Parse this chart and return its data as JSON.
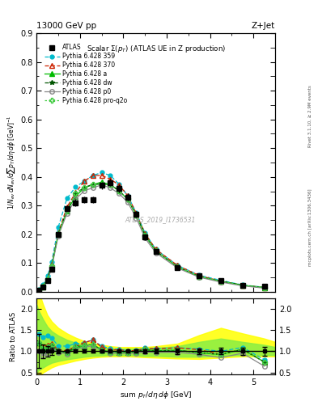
{
  "title_top": "13000 GeV pp",
  "title_right": "Z+Jet",
  "plot_title": "Scalar Σ(p_{T}) (ATLAS UE in Z production)",
  "ylabel_main": "1/N_{ev} dN_{ev}/dsum p_{T}/dη dφ  [GeV]^{-1}",
  "ylabel_ratio": "Ratio to ATLAS",
  "xlabel": "sum p_{T}/dη dφ [GeV]",
  "watermark": "ATLAS_2019_I1736531",
  "right_label_top": "Rivet 3.1.10, ≥ 2.9M events",
  "right_label_bot": "mcplots.cern.ch [arXiv:1306.3436]",
  "xlim": [
    0,
    5.5
  ],
  "ylim_main": [
    0,
    0.9
  ],
  "ylim_ratio": [
    0.45,
    2.25
  ],
  "x_atlas": [
    0.05,
    0.15,
    0.25,
    0.35,
    0.5,
    0.7,
    0.9,
    1.1,
    1.3,
    1.5,
    1.7,
    1.9,
    2.1,
    2.3,
    2.5,
    2.75,
    3.25,
    3.75,
    4.25,
    4.75,
    5.25
  ],
  "y_atlas": [
    0.005,
    0.018,
    0.04,
    0.08,
    0.2,
    0.29,
    0.31,
    0.32,
    0.32,
    0.37,
    0.38,
    0.36,
    0.33,
    0.27,
    0.19,
    0.14,
    0.085,
    0.055,
    0.04,
    0.022,
    0.02
  ],
  "yerr_atlas": [
    0.002,
    0.003,
    0.005,
    0.007,
    0.01,
    0.01,
    0.012,
    0.012,
    0.012,
    0.013,
    0.013,
    0.013,
    0.012,
    0.01,
    0.009,
    0.008,
    0.005,
    0.004,
    0.003,
    0.002,
    0.002
  ],
  "x_mc": [
    0.05,
    0.15,
    0.25,
    0.35,
    0.5,
    0.7,
    0.9,
    1.1,
    1.3,
    1.5,
    1.7,
    1.9,
    2.1,
    2.3,
    2.5,
    2.75,
    3.25,
    3.75,
    4.25,
    4.75,
    5.25
  ],
  "y_359": [
    0.007,
    0.024,
    0.055,
    0.105,
    0.225,
    0.325,
    0.365,
    0.385,
    0.405,
    0.415,
    0.405,
    0.375,
    0.335,
    0.275,
    0.205,
    0.148,
    0.092,
    0.058,
    0.04,
    0.024,
    0.016
  ],
  "y_370": [
    0.006,
    0.02,
    0.046,
    0.095,
    0.205,
    0.295,
    0.345,
    0.385,
    0.405,
    0.405,
    0.392,
    0.372,
    0.335,
    0.273,
    0.203,
    0.148,
    0.092,
    0.057,
    0.037,
    0.023,
    0.015
  ],
  "y_a": [
    0.006,
    0.018,
    0.043,
    0.09,
    0.2,
    0.282,
    0.332,
    0.362,
    0.373,
    0.382,
    0.373,
    0.352,
    0.322,
    0.267,
    0.197,
    0.142,
    0.087,
    0.053,
    0.037,
    0.023,
    0.015
  ],
  "y_dw": [
    0.006,
    0.019,
    0.044,
    0.091,
    0.201,
    0.283,
    0.343,
    0.363,
    0.374,
    0.374,
    0.373,
    0.352,
    0.323,
    0.267,
    0.197,
    0.142,
    0.087,
    0.053,
    0.037,
    0.023,
    0.015
  ],
  "y_p0": [
    0.005,
    0.016,
    0.038,
    0.085,
    0.195,
    0.272,
    0.322,
    0.352,
    0.362,
    0.372,
    0.362,
    0.342,
    0.312,
    0.257,
    0.187,
    0.136,
    0.083,
    0.051,
    0.034,
    0.021,
    0.013
  ],
  "y_proq2o": [
    0.006,
    0.019,
    0.044,
    0.091,
    0.201,
    0.283,
    0.343,
    0.363,
    0.374,
    0.374,
    0.373,
    0.352,
    0.323,
    0.267,
    0.197,
    0.142,
    0.087,
    0.053,
    0.037,
    0.023,
    0.015
  ],
  "color_359": "#00bbcc",
  "color_370": "#cc2200",
  "color_a": "#00bb00",
  "color_dw": "#005500",
  "color_p0": "#888888",
  "color_proq2o": "#44cc44",
  "color_atlas": "#000000",
  "band_yellow_x": [
    0.0,
    0.05,
    0.15,
    0.25,
    0.35,
    0.5,
    0.7,
    0.9,
    1.1,
    1.3,
    1.5,
    1.7,
    1.9,
    2.1,
    2.3,
    2.5,
    2.75,
    3.25,
    3.75,
    4.25,
    4.75,
    5.25,
    5.5
  ],
  "band_yellow_lo": [
    0.4,
    0.42,
    0.5,
    0.56,
    0.62,
    0.68,
    0.73,
    0.78,
    0.82,
    0.85,
    0.87,
    0.88,
    0.88,
    0.88,
    0.87,
    0.86,
    0.85,
    0.83,
    0.82,
    0.85,
    0.88,
    0.88,
    0.88
  ],
  "band_yellow_hi": [
    2.5,
    2.4,
    2.1,
    1.85,
    1.7,
    1.55,
    1.42,
    1.32,
    1.24,
    1.19,
    1.15,
    1.12,
    1.1,
    1.1,
    1.1,
    1.1,
    1.12,
    1.18,
    1.38,
    1.55,
    1.42,
    1.3,
    1.22
  ],
  "band_green_lo": [
    0.5,
    0.55,
    0.62,
    0.68,
    0.73,
    0.77,
    0.81,
    0.84,
    0.87,
    0.89,
    0.9,
    0.91,
    0.91,
    0.91,
    0.9,
    0.89,
    0.89,
    0.87,
    0.87,
    0.89,
    0.91,
    0.91,
    0.91
  ],
  "band_green_hi": [
    2.1,
    1.95,
    1.75,
    1.58,
    1.47,
    1.37,
    1.27,
    1.2,
    1.15,
    1.11,
    1.09,
    1.07,
    1.06,
    1.06,
    1.06,
    1.07,
    1.08,
    1.12,
    1.22,
    1.3,
    1.22,
    1.15,
    1.1
  ]
}
